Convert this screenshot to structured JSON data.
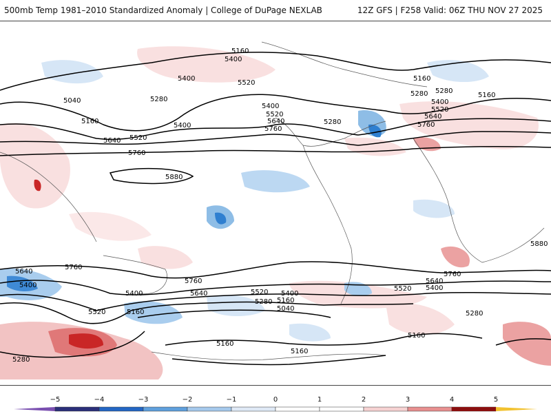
{
  "header": {
    "title": "500mb Temp 1981–2010 Standardized Anomaly | College of DuPage NEXLAB",
    "run_info": "12Z GFS | F258 Valid: 06Z THU NOV 27 2025"
  },
  "contour_labels": [
    "5160",
    "5400",
    "5520",
    "5400",
    "5280",
    "5400",
    "5040",
    "5160",
    "5640",
    "5520",
    "5760",
    "5880",
    "5160",
    "5280",
    "5400",
    "5520",
    "5640",
    "5760",
    "5280",
    "5160",
    "5280",
    "5400",
    "5520",
    "5640",
    "5760",
    "5880",
    "5640",
    "5400",
    "5760",
    "5760",
    "5640",
    "5400",
    "5520",
    "5280",
    "5160",
    "5040",
    "5400",
    "5520",
    "5640",
    "5760",
    "5400",
    "5520",
    "5160",
    "5280",
    "5160",
    "5160",
    "5160",
    "5280"
  ],
  "colorbar": {
    "ticks": [
      "−5",
      "−4",
      "−3",
      "−2",
      "−1",
      "0",
      "1",
      "2",
      "3",
      "4",
      "5"
    ],
    "colors": [
      "#2b2f7a",
      "#2366c4",
      "#5fa0dd",
      "#a6c9ec",
      "#dfe9f6",
      "#ffffff",
      "#ffffff",
      "#f6d2d2",
      "#e89090",
      "#cf3b3b",
      "#8a0f0f"
    ],
    "low_end_color": "#7a4fb0",
    "high_end_color": "#f2c230"
  },
  "colors": {
    "positive_light": "#f7dcdc",
    "positive_mid": "#eba2a2",
    "positive_strong": "#cc2b2b",
    "negative_light": "#d6e6f6",
    "negative_mid": "#8ebde6",
    "negative_strong": "#2f7fd0",
    "contour": "#000000"
  }
}
